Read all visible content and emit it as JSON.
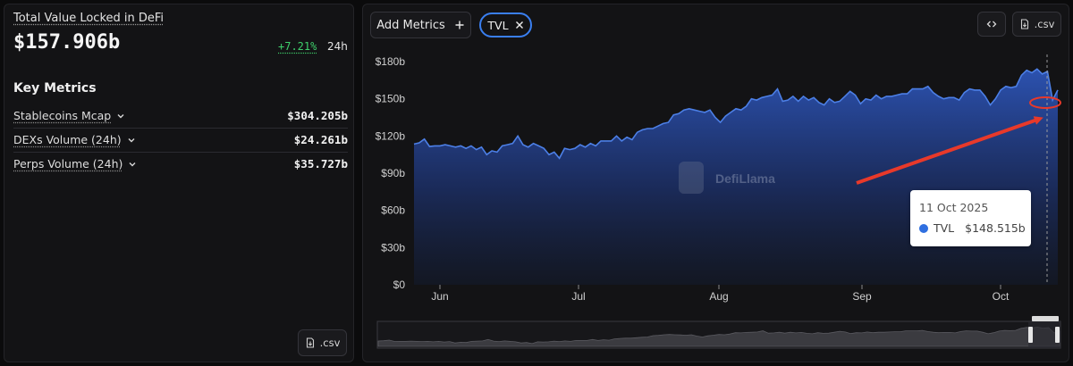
{
  "summary": {
    "tvl_label": "Total Value Locked in DeFi",
    "tvl_value": "$157.906b",
    "change": "+7.21%",
    "change_period": "24h"
  },
  "key_metrics": {
    "title": "Key Metrics",
    "items": [
      {
        "label": "Stablecoins Mcap",
        "value": "$304.205b"
      },
      {
        "label": "DEXs Volume (24h)",
        "value": "$24.261b"
      },
      {
        "label": "Perps Volume (24h)",
        "value": "$35.727b"
      }
    ]
  },
  "left_csv_label": ".csv",
  "toolbar": {
    "add_metrics_label": "Add Metrics",
    "metric_chip": "TVL",
    "csv_label": ".csv"
  },
  "watermark": "DefiLlama",
  "tooltip": {
    "date": "11 Oct 2025",
    "series": "TVL",
    "value": "$148.515b"
  },
  "colors": {
    "accent": "#3a7ff0",
    "positive": "#3ecf6b",
    "line": "#4c7fe6",
    "annotation": "#e8392a"
  },
  "chart_data": {
    "type": "area",
    "series": [
      {
        "name": "TVL",
        "values": [
          113.5,
          114.5,
          117.5,
          111.5,
          112,
          112,
          113,
          112,
          111,
          112,
          110,
          112,
          109,
          111,
          105,
          108,
          107,
          112,
          113,
          114,
          120,
          113,
          111,
          114,
          112,
          110,
          105,
          107,
          102,
          110,
          109,
          110,
          113,
          111,
          114,
          112,
          116,
          116,
          116,
          120,
          116,
          119,
          117,
          123,
          125,
          126,
          126,
          128,
          130,
          131,
          137,
          138,
          141,
          142,
          141,
          140,
          139,
          141,
          135,
          131,
          136,
          139,
          142,
          141,
          144,
          150,
          149,
          151,
          152,
          153,
          158,
          148,
          149,
          152,
          148,
          152,
          149,
          151,
          147,
          145,
          150,
          147,
          148,
          152,
          156,
          153,
          146,
          150,
          149,
          153,
          150,
          152,
          152,
          153,
          154,
          154,
          158,
          158,
          158,
          160,
          155,
          152,
          150,
          151,
          151,
          149,
          155,
          158,
          157,
          157,
          152,
          145,
          150,
          157,
          160,
          159,
          160,
          169,
          173,
          171,
          174,
          170,
          172,
          149,
          157
        ]
      }
    ],
    "x_ticks": [
      "Jun",
      "Jul",
      "Aug",
      "Sep",
      "Oct"
    ],
    "y_ticks": [
      "$0",
      "$30b",
      "$60b",
      "$90b",
      "$120b",
      "$150b",
      "$180b"
    ],
    "ylim": [
      0,
      180
    ],
    "grid": false
  }
}
